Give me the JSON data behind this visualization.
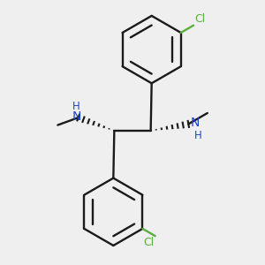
{
  "bg": "#efefef",
  "bc": "#1a1a1a",
  "clc": "#5aad3f",
  "nhc": "#2244cc",
  "lw": 1.7,
  "dpi": 100,
  "R": 0.185,
  "xlim": [
    -0.72,
    0.72
  ],
  "ylim": [
    -0.72,
    0.72
  ]
}
